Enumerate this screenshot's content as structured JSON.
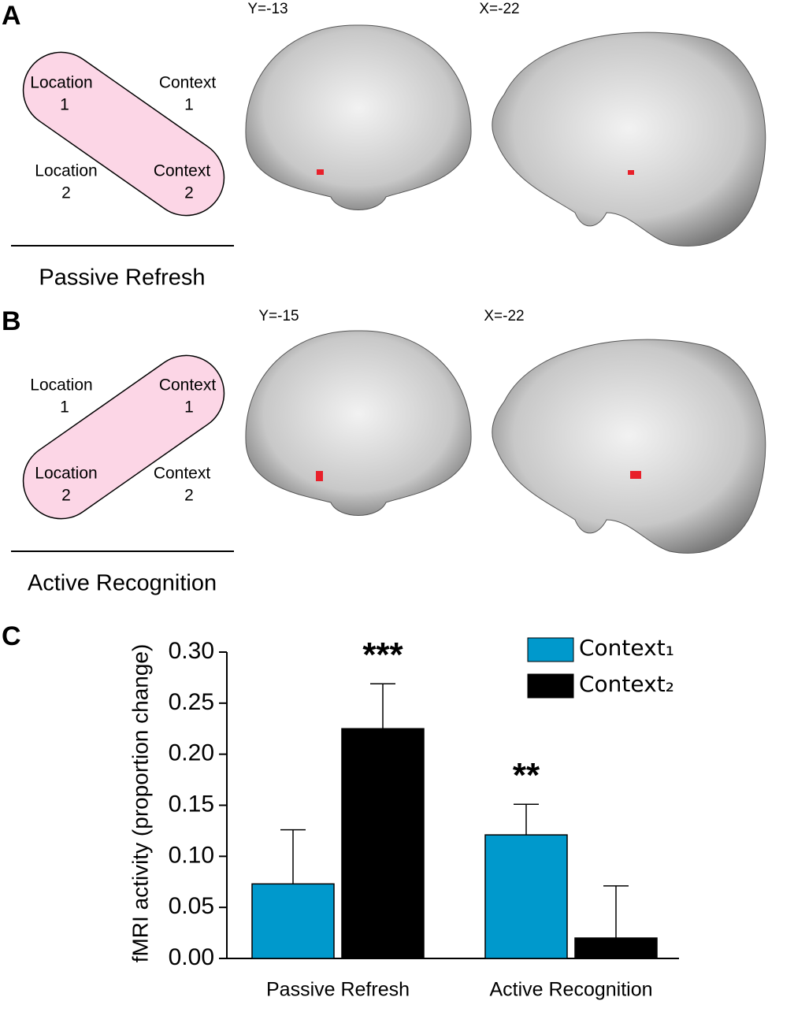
{
  "panel_labels": [
    "A",
    "B",
    "C"
  ],
  "panel_a": {
    "slice_labels": [
      "Y=-13",
      "X=-22"
    ],
    "cells": [
      [
        "Location",
        "1"
      ],
      [
        "Context",
        "1"
      ],
      [
        "Location",
        "2"
      ],
      [
        "Context",
        "2"
      ]
    ],
    "title": "Passive Refresh"
  },
  "panel_b": {
    "slice_labels": [
      "Y=-15",
      "X=-22"
    ],
    "cells": [
      [
        "Location",
        "1"
      ],
      [
        "Context",
        "1"
      ],
      [
        "Location",
        "2"
      ],
      [
        "Context",
        "2"
      ]
    ],
    "title": "Active Recognition"
  },
  "chart_data": {
    "type": "bar",
    "ylabel": "fMRI activity (proportion change)",
    "categories": [
      "Passive Refresh",
      "Active Recognition"
    ],
    "series": [
      {
        "name": "Context₁",
        "color": "#0099cc",
        "values": [
          0.073,
          0.121
        ],
        "errors": [
          0.053,
          0.03
        ],
        "annotations": [
          null,
          "**"
        ]
      },
      {
        "name": "Context₂",
        "color": "#000000",
        "values": [
          0.225,
          0.02
        ],
        "errors": [
          0.044,
          0.051
        ],
        "annotations": [
          "***",
          null
        ]
      }
    ],
    "ylim": [
      0,
      0.3
    ],
    "yticks": [
      {
        "value": 0,
        "label": "0.00"
      },
      {
        "value": 0.05,
        "label": "0.05"
      },
      {
        "value": 0.1,
        "label": "0.10"
      },
      {
        "value": 0.15,
        "label": "0.15"
      },
      {
        "value": 0.2,
        "label": "0.20"
      },
      {
        "value": 0.25,
        "label": "0.25"
      },
      {
        "value": 0.3,
        "label": "0.30"
      }
    ],
    "legend": "upper right"
  }
}
